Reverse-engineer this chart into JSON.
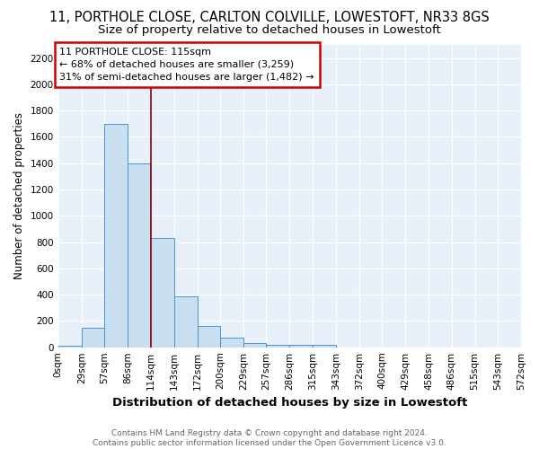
{
  "title1": "11, PORTHOLE CLOSE, CARLTON COLVILLE, LOWESTOFT, NR33 8GS",
  "title2": "Size of property relative to detached houses in Lowestoft",
  "xlabel": "Distribution of detached houses by size in Lowestoft",
  "ylabel": "Number of detached properties",
  "bin_edges": [
    0,
    29,
    57,
    86,
    114,
    143,
    172,
    200,
    229,
    257,
    286,
    315,
    343,
    372,
    400,
    429,
    458,
    486,
    515,
    543,
    572
  ],
  "bar_heights": [
    10,
    150,
    1700,
    1400,
    830,
    390,
    160,
    70,
    30,
    20,
    20,
    20,
    0,
    0,
    0,
    0,
    0,
    0,
    0,
    0
  ],
  "bar_facecolor": "#c8dff2",
  "bar_edgecolor": "#4d94d0",
  "vline_x": 115,
  "vline_color": "#990000",
  "annotation_text": "11 PORTHOLE CLOSE: 115sqm\n← 68% of detached houses are smaller (3,259)\n31% of semi-detached houses are larger (1,482) →",
  "annotation_box_edgecolor": "#cc0000",
  "annotation_box_facecolor": "#ffffff",
  "ylim": [
    0,
    2300
  ],
  "yticks": [
    0,
    200,
    400,
    600,
    800,
    1000,
    1200,
    1400,
    1600,
    1800,
    2000,
    2200
  ],
  "background_color": "#e8f1fa",
  "footer_text": "Contains HM Land Registry data © Crown copyright and database right 2024.\nContains public sector information licensed under the Open Government Licence v3.0.",
  "title1_fontsize": 10.5,
  "title2_fontsize": 9.5,
  "xlabel_fontsize": 9.5,
  "ylabel_fontsize": 8.5,
  "tick_fontsize": 7.5,
  "annotation_fontsize": 8,
  "footer_fontsize": 6.5
}
